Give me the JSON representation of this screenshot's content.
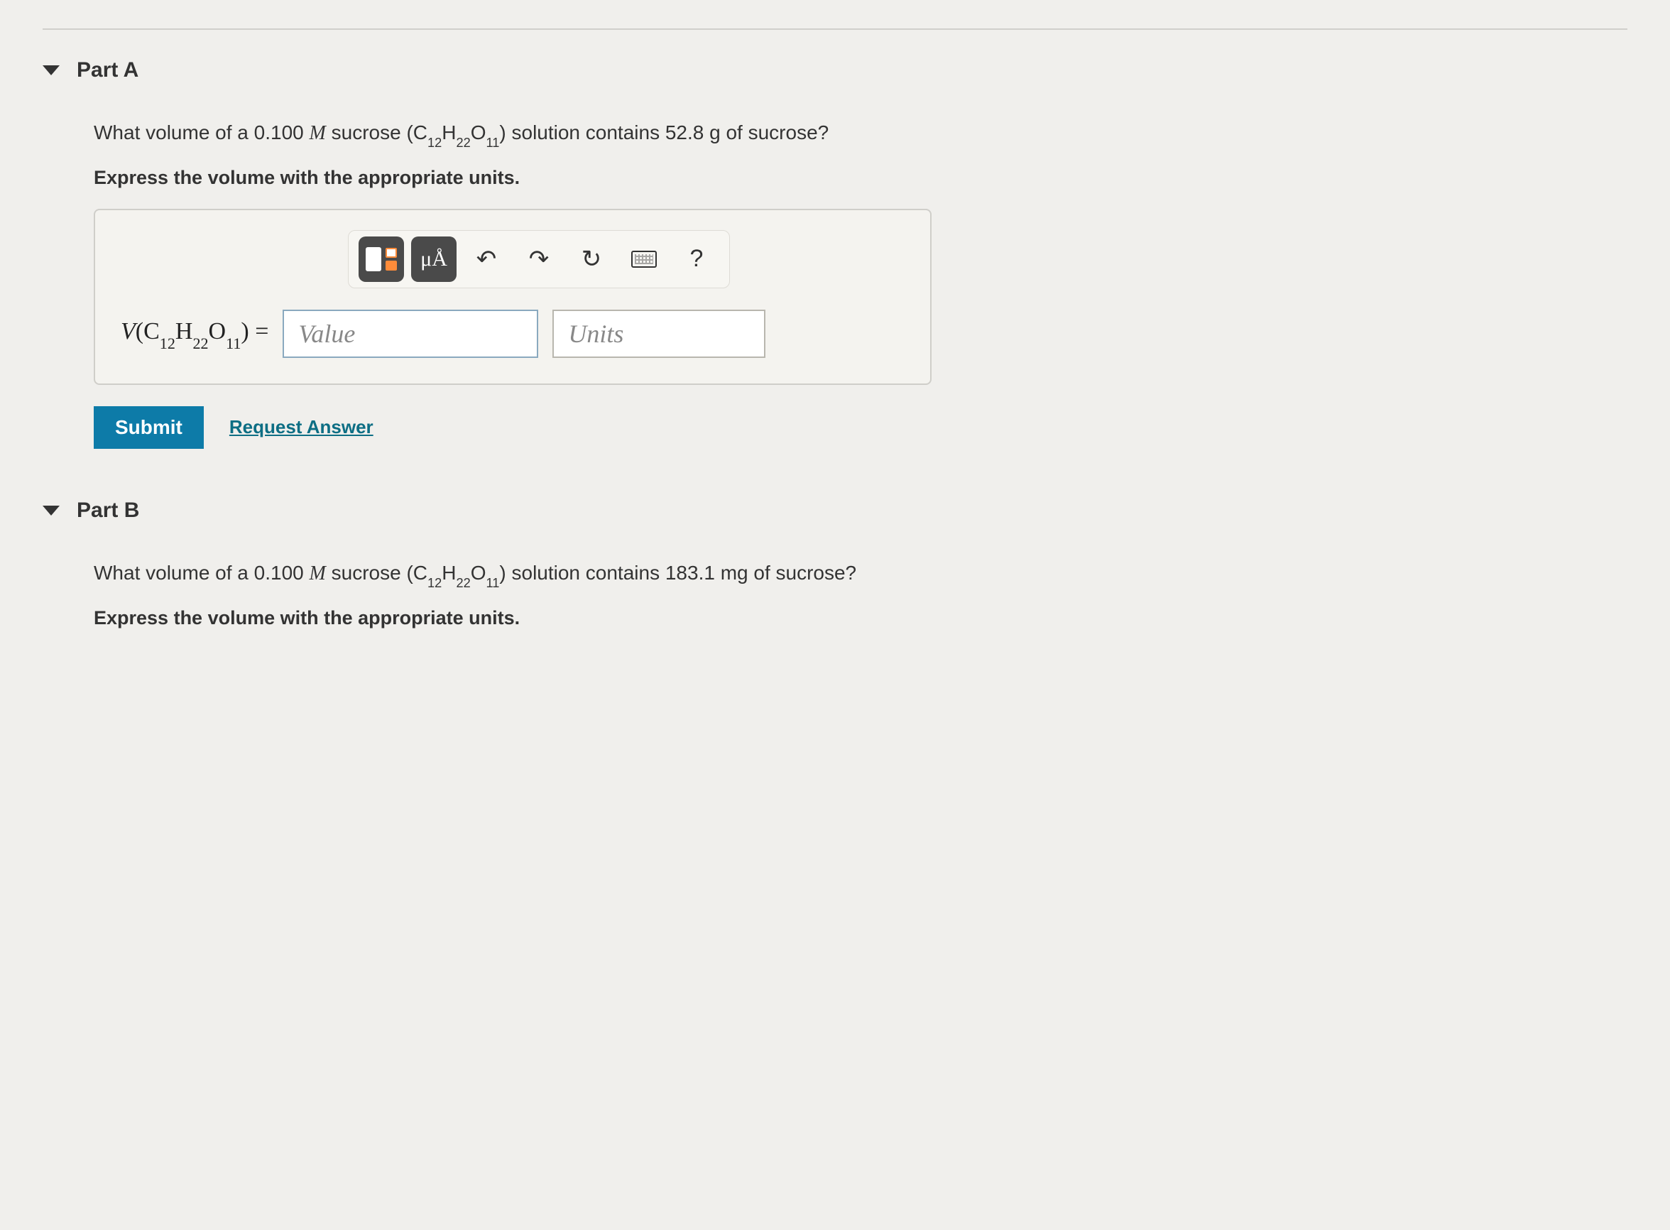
{
  "partA": {
    "title": "Part A",
    "question_pre": "What volume of a 0.100 ",
    "molarity_sym": "M",
    "question_mid": " sucrose (",
    "formula_c": "C",
    "formula_c_sub": "12",
    "formula_h": "H",
    "formula_h_sub": "22",
    "formula_o": "O",
    "formula_o_sub": "11",
    "question_post": ") solution contains 52.8 g of sucrose?",
    "instruction": "Express the volume with the appropriate units.",
    "lhs_v": "V",
    "lhs_open": "(",
    "lhs_close": ") = ",
    "value_placeholder": "Value",
    "units_placeholder": "Units",
    "toolbar": {
      "mu_a": "μÅ",
      "undo": "↶",
      "redo": "↷",
      "reset": "↻",
      "help": "?"
    },
    "submit": "Submit",
    "request": "Request Answer"
  },
  "partB": {
    "title": "Part B",
    "question_pre": "What volume of a 0.100 ",
    "molarity_sym": "M",
    "question_mid": " sucrose (",
    "question_post": ") solution contains 183.1 mg of sucrose?",
    "instruction": "Express the volume with the appropriate units."
  },
  "colors": {
    "background": "#f0efec",
    "border": "#cfcec9",
    "button_bg": "#0d7ba8",
    "link": "#0d6e84",
    "tool_dark": "#4a4a4a",
    "field_border": "#8aa9bf"
  }
}
